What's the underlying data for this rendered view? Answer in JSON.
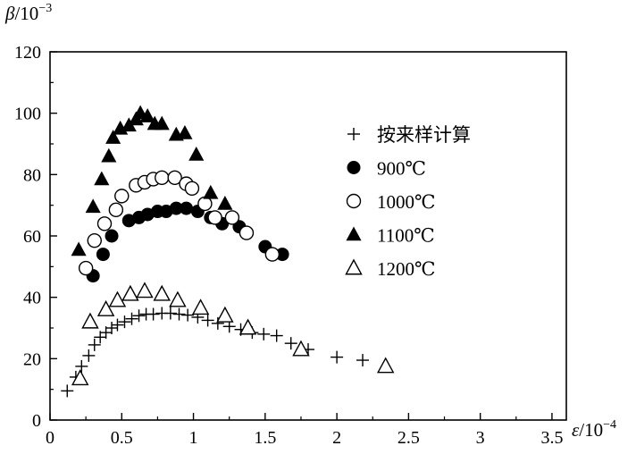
{
  "chart_data": {
    "type": "scatter",
    "title": "",
    "xlabel": "ε/10",
    "xlabel_exp": "−4",
    "ylabel": "β/10",
    "ylabel_exp": "−3",
    "xlim": [
      0,
      3.6
    ],
    "ylim": [
      0,
      120
    ],
    "xticks": [
      0,
      0.5,
      1,
      1.5,
      2,
      2.5,
      3,
      3.5
    ],
    "xtick_labels": [
      "0",
      "0.5",
      "1",
      "1.5",
      "2",
      "2.5",
      "3",
      "3.5"
    ],
    "yticks": [
      0,
      20,
      40,
      60,
      80,
      100,
      120
    ],
    "ytick_labels": [
      "0",
      "20",
      "40",
      "60",
      "80",
      "100",
      "120"
    ],
    "grid": false,
    "legend_position": "right",
    "series": [
      {
        "name": "按来样计算",
        "marker": "plus",
        "x": [
          0.12,
          0.18,
          0.22,
          0.27,
          0.31,
          0.35,
          0.39,
          0.43,
          0.47,
          0.52,
          0.57,
          0.62,
          0.67,
          0.72,
          0.78,
          0.84,
          0.9,
          0.96,
          1.03,
          1.1,
          1.17,
          1.25,
          1.33,
          1.41,
          1.49,
          1.58,
          1.68,
          1.8,
          2.0,
          2.18
        ],
        "y": [
          9.5,
          14,
          17.5,
          21,
          24.5,
          27,
          28.5,
          30,
          31,
          32,
          33,
          34,
          34.5,
          34.5,
          34.8,
          34.8,
          34.5,
          34.2,
          33.5,
          32.5,
          31.5,
          30.5,
          29.5,
          28.5,
          28,
          27.5,
          25,
          23,
          20.5,
          19.5
        ]
      },
      {
        "name": "900℃",
        "marker": "filled-circle",
        "x": [
          0.3,
          0.37,
          0.43,
          0.55,
          0.62,
          0.68,
          0.75,
          0.81,
          0.88,
          0.95,
          1.03,
          1.12,
          1.2,
          1.32,
          1.5,
          1.62
        ],
        "y": [
          47,
          54,
          60,
          65,
          66,
          67,
          68,
          68,
          69,
          69,
          68,
          66,
          64,
          63,
          56.5,
          54
        ]
      },
      {
        "name": "1000℃",
        "marker": "open-circle",
        "x": [
          0.25,
          0.31,
          0.38,
          0.46,
          0.5,
          0.6,
          0.66,
          0.72,
          0.78,
          0.87,
          0.95,
          0.99,
          1.08,
          1.15,
          1.27,
          1.37,
          1.55
        ],
        "y": [
          49.5,
          58.5,
          64,
          68.5,
          73,
          76.5,
          77.5,
          78.5,
          79,
          79,
          77,
          75.5,
          70.5,
          66,
          66,
          61,
          54
        ]
      },
      {
        "name": "1100℃",
        "marker": "filled-triangle",
        "x": [
          0.2,
          0.3,
          0.36,
          0.41,
          0.44,
          0.49,
          0.55,
          0.6,
          0.63,
          0.68,
          0.73,
          0.78,
          0.88,
          0.94,
          1.02,
          1.12,
          1.22
        ],
        "y": [
          55.5,
          69.5,
          78.5,
          86,
          92,
          95,
          96,
          98,
          100,
          99,
          96.5,
          96.5,
          93,
          93.5,
          86.5,
          74,
          70.5
        ]
      },
      {
        "name": "1200℃",
        "marker": "open-triangle",
        "x": [
          0.21,
          0.28,
          0.39,
          0.47,
          0.56,
          0.66,
          0.78,
          0.89,
          1.05,
          1.22,
          1.38,
          1.75,
          2.34
        ],
        "y": [
          13.5,
          32,
          36,
          39,
          41,
          42,
          41,
          39,
          36.5,
          34,
          30,
          23,
          17.5
        ]
      }
    ]
  }
}
